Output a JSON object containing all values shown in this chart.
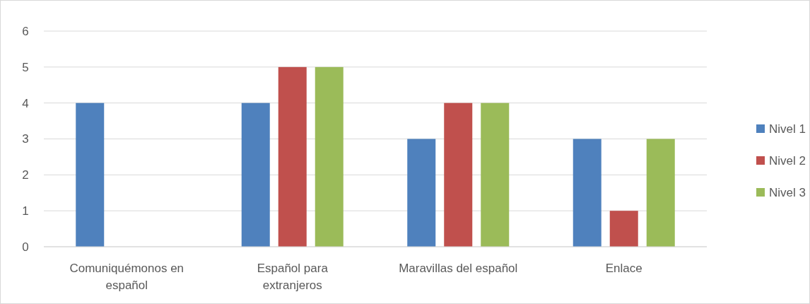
{
  "chart_data": {
    "type": "bar",
    "categories": [
      "Comuniquémonos en español",
      "Español para extranjeros",
      "Maravillas del español",
      "Enlace"
    ],
    "series": [
      {
        "name": "Nivel 1",
        "color": "#4f81bd",
        "values": [
          4,
          4,
          3,
          3
        ]
      },
      {
        "name": "Nivel 2",
        "color": "#c0504d",
        "values": [
          null,
          5,
          4,
          1
        ]
      },
      {
        "name": "Nivel 3",
        "color": "#9bbb59",
        "values": [
          null,
          5,
          4,
          3
        ]
      }
    ],
    "ylim": [
      0,
      6
    ],
    "yticks": [
      0,
      1,
      2,
      3,
      4,
      5,
      6
    ],
    "grid": "y",
    "legend": "right"
  }
}
